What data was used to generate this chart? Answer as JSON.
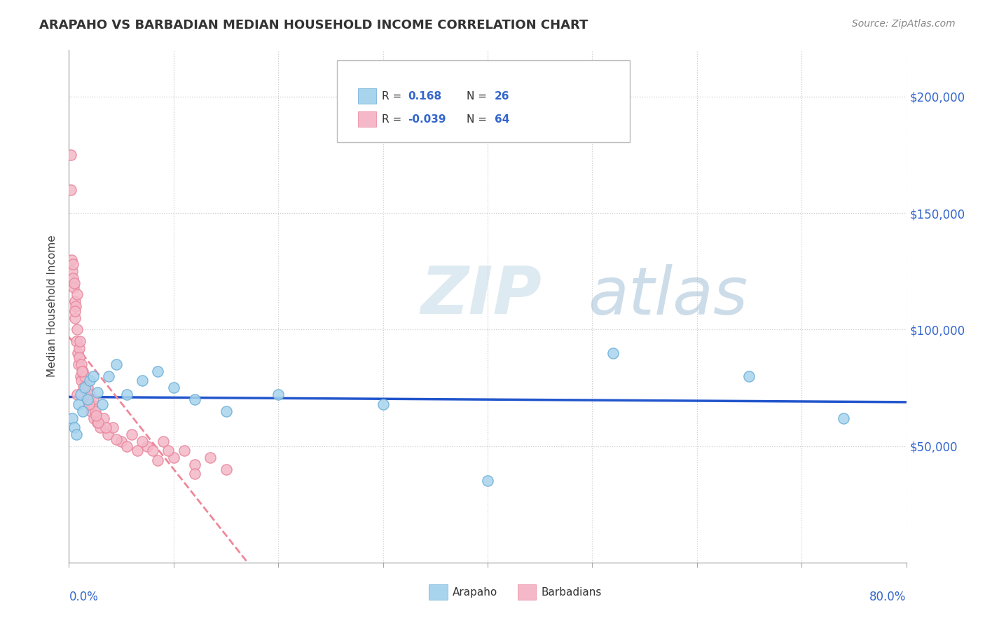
{
  "title": "ARAPAHO VS BARBADIAN MEDIAN HOUSEHOLD INCOME CORRELATION CHART",
  "source_text": "Source: ZipAtlas.com",
  "ylabel": "Median Household Income",
  "x_min": 0.0,
  "x_max": 80.0,
  "y_min": 0,
  "y_max": 220000,
  "y_ticks": [
    50000,
    100000,
    150000,
    200000
  ],
  "y_tick_labels": [
    "$50,000",
    "$100,000",
    "$150,000",
    "$200,000"
  ],
  "arapaho_color": "#a8d4ee",
  "arapaho_edge": "#6aaed6",
  "barbadian_color": "#f4b8c8",
  "barbadian_edge": "#e8849a",
  "trend_arapaho_color": "#2255cc",
  "trend_barbadian_color": "#ee8899",
  "R_arapaho": 0.168,
  "N_arapaho": 26,
  "R_barbadian": -0.039,
  "N_barbadian": 64,
  "watermark_zip": "ZIP",
  "watermark_atlas": "atlas",
  "arapaho_x": [
    0.3,
    0.5,
    0.7,
    0.9,
    1.1,
    1.3,
    1.5,
    1.8,
    2.0,
    2.3,
    2.7,
    3.2,
    3.8,
    4.5,
    5.5,
    7.0,
    8.5,
    10.0,
    12.0,
    15.0,
    20.0,
    30.0,
    40.0,
    52.0,
    65.0,
    74.0
  ],
  "arapaho_y": [
    62000,
    58000,
    55000,
    68000,
    72000,
    65000,
    75000,
    70000,
    78000,
    80000,
    73000,
    68000,
    80000,
    85000,
    72000,
    78000,
    82000,
    75000,
    70000,
    65000,
    72000,
    68000,
    35000,
    90000,
    80000,
    62000
  ],
  "barbadian_x": [
    0.15,
    0.2,
    0.25,
    0.3,
    0.35,
    0.4,
    0.45,
    0.5,
    0.55,
    0.6,
    0.65,
    0.7,
    0.75,
    0.8,
    0.85,
    0.9,
    0.95,
    1.0,
    1.05,
    1.1,
    1.15,
    1.2,
    1.3,
    1.4,
    1.5,
    1.6,
    1.7,
    1.8,
    1.9,
    2.0,
    2.1,
    2.2,
    2.3,
    2.4,
    2.5,
    2.7,
    3.0,
    3.3,
    3.7,
    4.2,
    5.0,
    6.0,
    7.5,
    8.0,
    9.0,
    10.0,
    11.0,
    12.0,
    13.5,
    15.0,
    3.5,
    4.5,
    5.5,
    6.5,
    7.0,
    8.5,
    2.8,
    1.25,
    0.55,
    2.6,
    0.8,
    1.9,
    9.5,
    12.0
  ],
  "barbadian_y": [
    175000,
    160000,
    130000,
    125000,
    128000,
    122000,
    118000,
    120000,
    112000,
    105000,
    110000,
    95000,
    100000,
    115000,
    90000,
    85000,
    92000,
    88000,
    95000,
    80000,
    85000,
    78000,
    82000,
    75000,
    80000,
    72000,
    70000,
    75000,
    68000,
    72000,
    65000,
    68000,
    70000,
    62000,
    65000,
    60000,
    58000,
    62000,
    55000,
    58000,
    52000,
    55000,
    50000,
    48000,
    52000,
    45000,
    48000,
    42000,
    45000,
    40000,
    58000,
    53000,
    50000,
    48000,
    52000,
    44000,
    60000,
    82000,
    108000,
    63000,
    72000,
    68000,
    48000,
    38000
  ]
}
